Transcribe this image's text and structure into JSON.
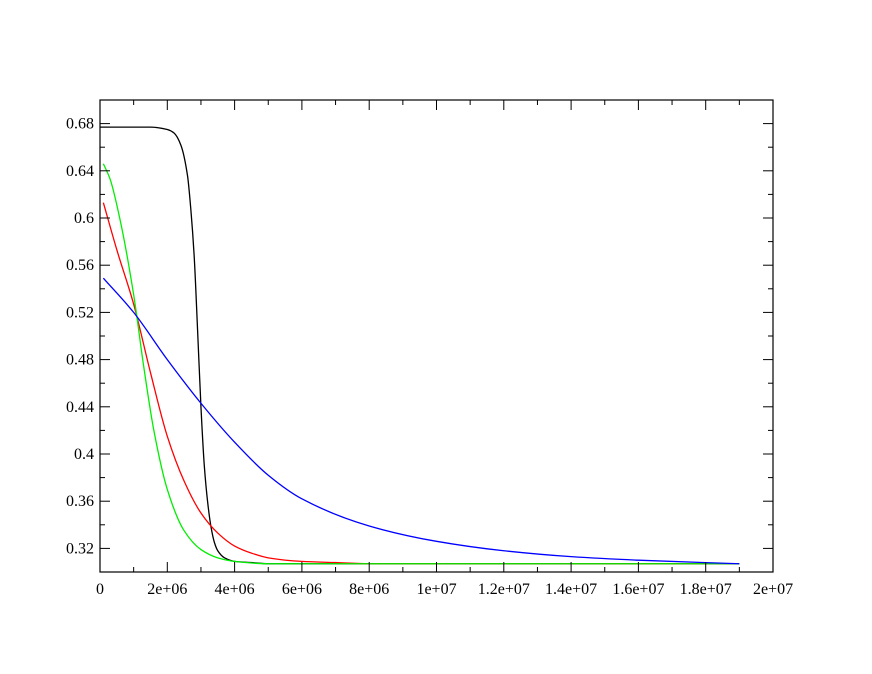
{
  "chart_data": {
    "type": "line",
    "title": "",
    "xlabel": "",
    "ylabel": "",
    "xlim": [
      0,
      20000000
    ],
    "ylim": [
      0.3,
      0.7
    ],
    "grid": false,
    "legend": "none",
    "x_ticks": [
      {
        "value": 0,
        "label": "0"
      },
      {
        "value": 2000000,
        "label": "2e+06"
      },
      {
        "value": 4000000,
        "label": "4e+06"
      },
      {
        "value": 6000000,
        "label": "6e+06"
      },
      {
        "value": 8000000,
        "label": "8e+06"
      },
      {
        "value": 10000000,
        "label": "1e+07"
      },
      {
        "value": 12000000,
        "label": "1.2e+07"
      },
      {
        "value": 14000000,
        "label": "1.4e+07"
      },
      {
        "value": 16000000,
        "label": "1.6e+07"
      },
      {
        "value": 18000000,
        "label": "1.8e+07"
      },
      {
        "value": 20000000,
        "label": "2e+07"
      }
    ],
    "y_ticks": [
      {
        "value": 0.32,
        "label": "0.32"
      },
      {
        "value": 0.36,
        "label": "0.36"
      },
      {
        "value": 0.4,
        "label": "0.4"
      },
      {
        "value": 0.44,
        "label": "0.44"
      },
      {
        "value": 0.48,
        "label": "0.48"
      },
      {
        "value": 0.52,
        "label": "0.52"
      },
      {
        "value": 0.56,
        "label": "0.56"
      },
      {
        "value": 0.6,
        "label": "0.6"
      },
      {
        "value": 0.64,
        "label": "0.64"
      },
      {
        "value": 0.68,
        "label": "0.68"
      }
    ],
    "series": [
      {
        "color": "#000000",
        "x": [
          0,
          500000,
          1000000,
          1500000,
          2000000,
          2200000,
          2400000,
          2600000,
          2700000,
          2800000,
          2900000,
          3000000,
          3100000,
          3200000,
          3300000,
          3400000,
          3500000,
          3700000,
          4000000,
          4500000,
          5000000,
          7000000,
          10000000,
          14000000,
          19000000
        ],
        "y": [
          0.677,
          0.677,
          0.677,
          0.677,
          0.675,
          0.672,
          0.662,
          0.636,
          0.607,
          0.567,
          0.505,
          0.44,
          0.39,
          0.359,
          0.338,
          0.325,
          0.318,
          0.312,
          0.309,
          0.308,
          0.307,
          0.307,
          0.307,
          0.307,
          0.307
        ]
      },
      {
        "color": "#ff0000",
        "x": [
          100000,
          500000,
          1000000,
          1500000,
          2000000,
          2500000,
          3000000,
          3500000,
          4000000,
          4500000,
          5000000,
          6000000,
          7000000,
          8000000,
          10000000,
          14000000,
          19000000
        ],
        "y": [
          0.613,
          0.573,
          0.527,
          0.469,
          0.415,
          0.377,
          0.35,
          0.333,
          0.322,
          0.316,
          0.312,
          0.309,
          0.308,
          0.307,
          0.307,
          0.307,
          0.307
        ]
      },
      {
        "color": "#00ee00",
        "x": [
          100000,
          300000,
          600000,
          1000000,
          1300000,
          1600000,
          2000000,
          2500000,
          3000000,
          3500000,
          4000000,
          5000000,
          6000000,
          8000000,
          10000000,
          14000000,
          19000000
        ],
        "y": [
          0.646,
          0.633,
          0.598,
          0.535,
          0.474,
          0.42,
          0.37,
          0.335,
          0.319,
          0.312,
          0.309,
          0.307,
          0.307,
          0.307,
          0.307,
          0.307,
          0.307
        ]
      },
      {
        "color": "#0000ff",
        "x": [
          100000,
          1000000,
          2000000,
          3000000,
          4000000,
          5000000,
          6000000,
          8000000,
          10000000,
          12000000,
          14000000,
          16000000,
          19000000
        ],
        "y": [
          0.549,
          0.52,
          0.48,
          0.443,
          0.41,
          0.382,
          0.362,
          0.339,
          0.326,
          0.318,
          0.313,
          0.31,
          0.307
        ]
      }
    ]
  }
}
